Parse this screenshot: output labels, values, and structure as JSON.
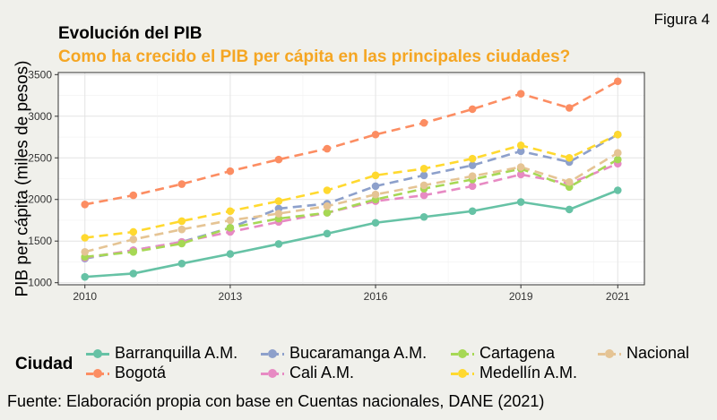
{
  "figure_label": "Figura 4",
  "legend_title": "Ciudad",
  "source_note": "Fuente: Elaboración propia con base en Cuentas nacionales, DANE (2021)",
  "chart_data": {
    "type": "line",
    "title": "Evolución del PIB",
    "subtitle": "Como ha crecido el PIB per cápita en las principales ciudades?",
    "xlabel": "",
    "ylabel": "PIB per cápita (miles de pesos)",
    "x": [
      2010,
      2011,
      2012,
      2013,
      2014,
      2015,
      2016,
      2017,
      2018,
      2019,
      2020,
      2021
    ],
    "xticks": [
      "2010",
      "2013",
      "2016",
      "2019",
      "2021"
    ],
    "xtick_values": [
      2010,
      2013,
      2016,
      2019,
      2021
    ],
    "yticks": [
      "1000",
      "1500",
      "2000",
      "2500",
      "3000",
      "3500"
    ],
    "ytick_values": [
      1000,
      1500,
      2000,
      2500,
      3000,
      3500
    ],
    "xlim": [
      2009.45,
      2021.55
    ],
    "ylim": [
      975,
      3525
    ],
    "grid": true,
    "legend_position": "bottom",
    "series": [
      {
        "name": "Barranquilla A.M.",
        "color": "#66c2a5",
        "dash": "solid",
        "values": [
          1070,
          1110,
          1230,
          1345,
          1465,
          1590,
          1720,
          1790,
          1860,
          1970,
          1880,
          2110
        ]
      },
      {
        "name": "Bogotá",
        "color": "#fc8d62",
        "dash": "dashed",
        "values": [
          1940,
          2050,
          2185,
          2340,
          2480,
          2610,
          2780,
          2920,
          3085,
          3270,
          3100,
          3420
        ]
      },
      {
        "name": "Bucaramanga A.M.",
        "color": "#8da0cb",
        "dash": "dashed",
        "values": [
          1290,
          1390,
          1490,
          1660,
          1890,
          1950,
          2160,
          2290,
          2410,
          2580,
          2450,
          2780
        ]
      },
      {
        "name": "Cali A.M.",
        "color": "#e78ac3",
        "dash": "dashed",
        "values": [
          1300,
          1390,
          1490,
          1610,
          1730,
          1840,
          1980,
          2050,
          2160,
          2300,
          2190,
          2430
        ]
      },
      {
        "name": "Cartagena",
        "color": "#a6d854",
        "dash": "dashed",
        "values": [
          1310,
          1370,
          1470,
          1660,
          1770,
          1840,
          2000,
          2130,
          2240,
          2370,
          2150,
          2480
        ]
      },
      {
        "name": "Medellín A.M.",
        "color": "#ffd92f",
        "dash": "dashed",
        "values": [
          1540,
          1610,
          1740,
          1860,
          1980,
          2110,
          2290,
          2370,
          2490,
          2650,
          2500,
          2780
        ]
      },
      {
        "name": "Nacional",
        "color": "#e5c494",
        "dash": "dashed",
        "values": [
          1370,
          1520,
          1640,
          1750,
          1830,
          1920,
          2060,
          2170,
          2280,
          2390,
          2210,
          2560
        ]
      }
    ]
  }
}
